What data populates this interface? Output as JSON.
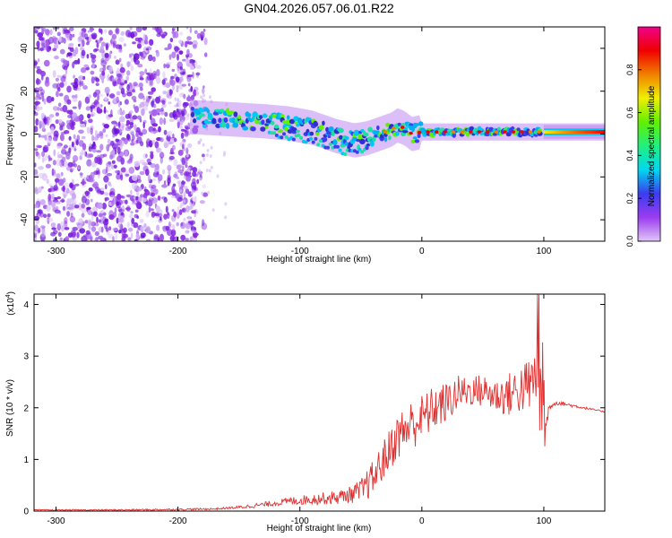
{
  "page": {
    "title": "GN04.2026.057.06.01.R22"
  },
  "colors": {
    "snr_line": "#e03030",
    "axis": "#000000",
    "spectrum_purple": "#7a1fe0",
    "colorbar_stops": [
      "#e0c6f6",
      "#9b3cf0",
      "#3c3cf0",
      "#00d8f0",
      "#20f080",
      "#60f000",
      "#f0f000",
      "#f08000",
      "#f00000",
      "#f0008a"
    ]
  },
  "chart_data": [
    {
      "id": "spectrogram",
      "type": "heatmap",
      "title": "GN04.2026.057.06.01.R22",
      "xlabel": "Height of straight line (km)",
      "ylabel": "Frequency (Hz)",
      "xlim": [
        -318,
        150
      ],
      "ylim": [
        -50,
        50
      ],
      "x_ticks": [
        -300,
        -200,
        -100,
        0,
        100
      ],
      "x_tick_labels": [
        "-300",
        "-200",
        "-100",
        "0",
        "100"
      ],
      "y_ticks": [
        -40,
        -20,
        0,
        20,
        40
      ],
      "y_tick_labels": [
        "-40",
        "-20",
        "0",
        "20",
        "40"
      ],
      "noise_region_x": [
        -318,
        -185
      ],
      "ridge": {
        "description_points_x": [
          -190,
          -160,
          -130,
          -110,
          -90,
          -70,
          -55,
          -45,
          -35,
          -25,
          -20,
          -15,
          -8,
          0,
          20,
          50,
          80,
          100,
          150
        ],
        "description_points_y": [
          8,
          7,
          6,
          5,
          3,
          -1,
          -3,
          -2,
          0,
          2,
          4,
          3,
          0,
          1,
          1,
          1,
          1,
          1,
          1
        ]
      },
      "colorbar": {
        "label": "Normalized spectral amplitude",
        "range": [
          0.0,
          1.0
        ],
        "ticks": [
          0.0,
          0.2,
          0.4,
          0.6,
          0.8
        ],
        "tick_labels": [
          "0.0",
          "0.2",
          "0.4",
          "0.6",
          "0.8"
        ]
      }
    },
    {
      "id": "snr",
      "type": "line",
      "xlabel": "Height of straight line (km)",
      "ylabel": "SNR (10 * v/v)",
      "y_multiplier_label": "(x10",
      "y_multiplier_exp": "4",
      "xlim": [
        -318,
        150
      ],
      "ylim": [
        0,
        4.2
      ],
      "x_ticks": [
        -300,
        -200,
        -100,
        0,
        100
      ],
      "x_tick_labels": [
        "-300",
        "-200",
        "-100",
        "0",
        "100"
      ],
      "y_ticks": [
        0,
        1,
        2,
        3,
        4
      ],
      "y_tick_labels": [
        "0",
        "1",
        "2",
        "3",
        "4"
      ],
      "series": [
        {
          "name": "SNR",
          "envelope_x": [
            -318,
            -250,
            -200,
            -170,
            -150,
            -130,
            -110,
            -90,
            -70,
            -50,
            -40,
            -30,
            -20,
            -10,
            0,
            10,
            20,
            30,
            40,
            50,
            60,
            70,
            80,
            90,
            95,
            98,
            100,
            104,
            110,
            150
          ],
          "envelope_y": [
            0.02,
            0.02,
            0.03,
            0.04,
            0.07,
            0.12,
            0.18,
            0.22,
            0.25,
            0.35,
            0.6,
            1.0,
            1.4,
            1.6,
            1.75,
            1.95,
            2.05,
            2.25,
            2.3,
            2.3,
            2.2,
            2.2,
            2.3,
            2.4,
            2.6,
            2.0,
            1.2,
            2.0,
            2.1,
            1.92
          ],
          "noise_amp_x": [
            -318,
            -160,
            -120,
            -60,
            -40,
            -10,
            20,
            40,
            60,
            90,
            98,
            104,
            150
          ],
          "noise_amp_y": [
            0.01,
            0.02,
            0.06,
            0.15,
            0.35,
            0.5,
            0.4,
            0.3,
            0.35,
            0.55,
            0.9,
            0.05,
            0.01
          ]
        }
      ]
    }
  ]
}
